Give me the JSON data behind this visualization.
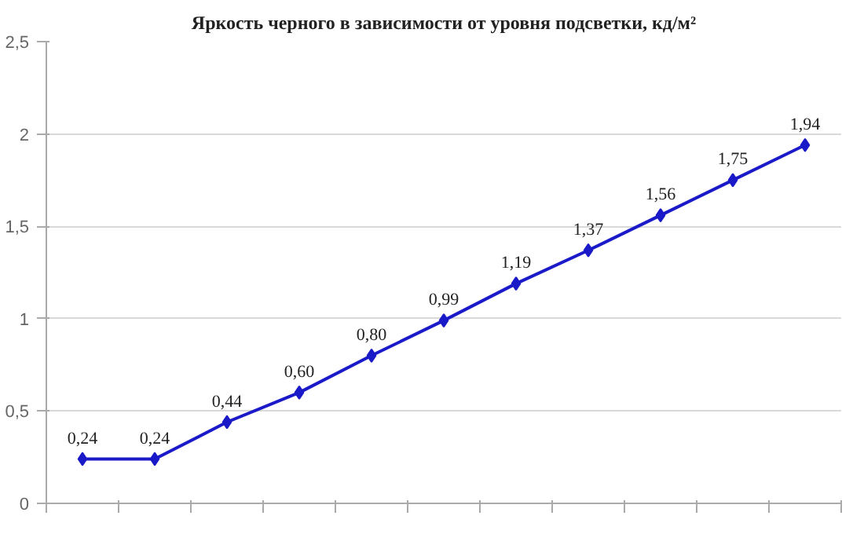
{
  "chart_data": {
    "type": "line",
    "title": "Яркость черного в зависимости от уровня подсветки, кд/м²",
    "categories": [
      null,
      null,
      null,
      null,
      null,
      null,
      null,
      null,
      null,
      null,
      null
    ],
    "series": [
      {
        "color": "#1a1ac8",
        "values": [
          0.24,
          0.24,
          0.44,
          0.6,
          0.8,
          0.99,
          1.19,
          1.37,
          1.56,
          1.75,
          1.94
        ],
        "value_labels": [
          "0,24",
          "0,24",
          "0,44",
          "0,60",
          "0,80",
          "0,99",
          "1,19",
          "1,37",
          "1,56",
          "1,75",
          "1,94"
        ]
      }
    ],
    "ylim": [
      0,
      2.5
    ],
    "yticks": [
      0,
      {
        "value": 0.5,
        "label": "0,5"
      },
      1,
      {
        "value": 1.5,
        "label": "1,5"
      },
      2,
      {
        "value": 2.5,
        "label": "2,5"
      }
    ],
    "grid": "y",
    "marker": "diamond",
    "line_style": "solid",
    "tick_labels": "y"
  }
}
